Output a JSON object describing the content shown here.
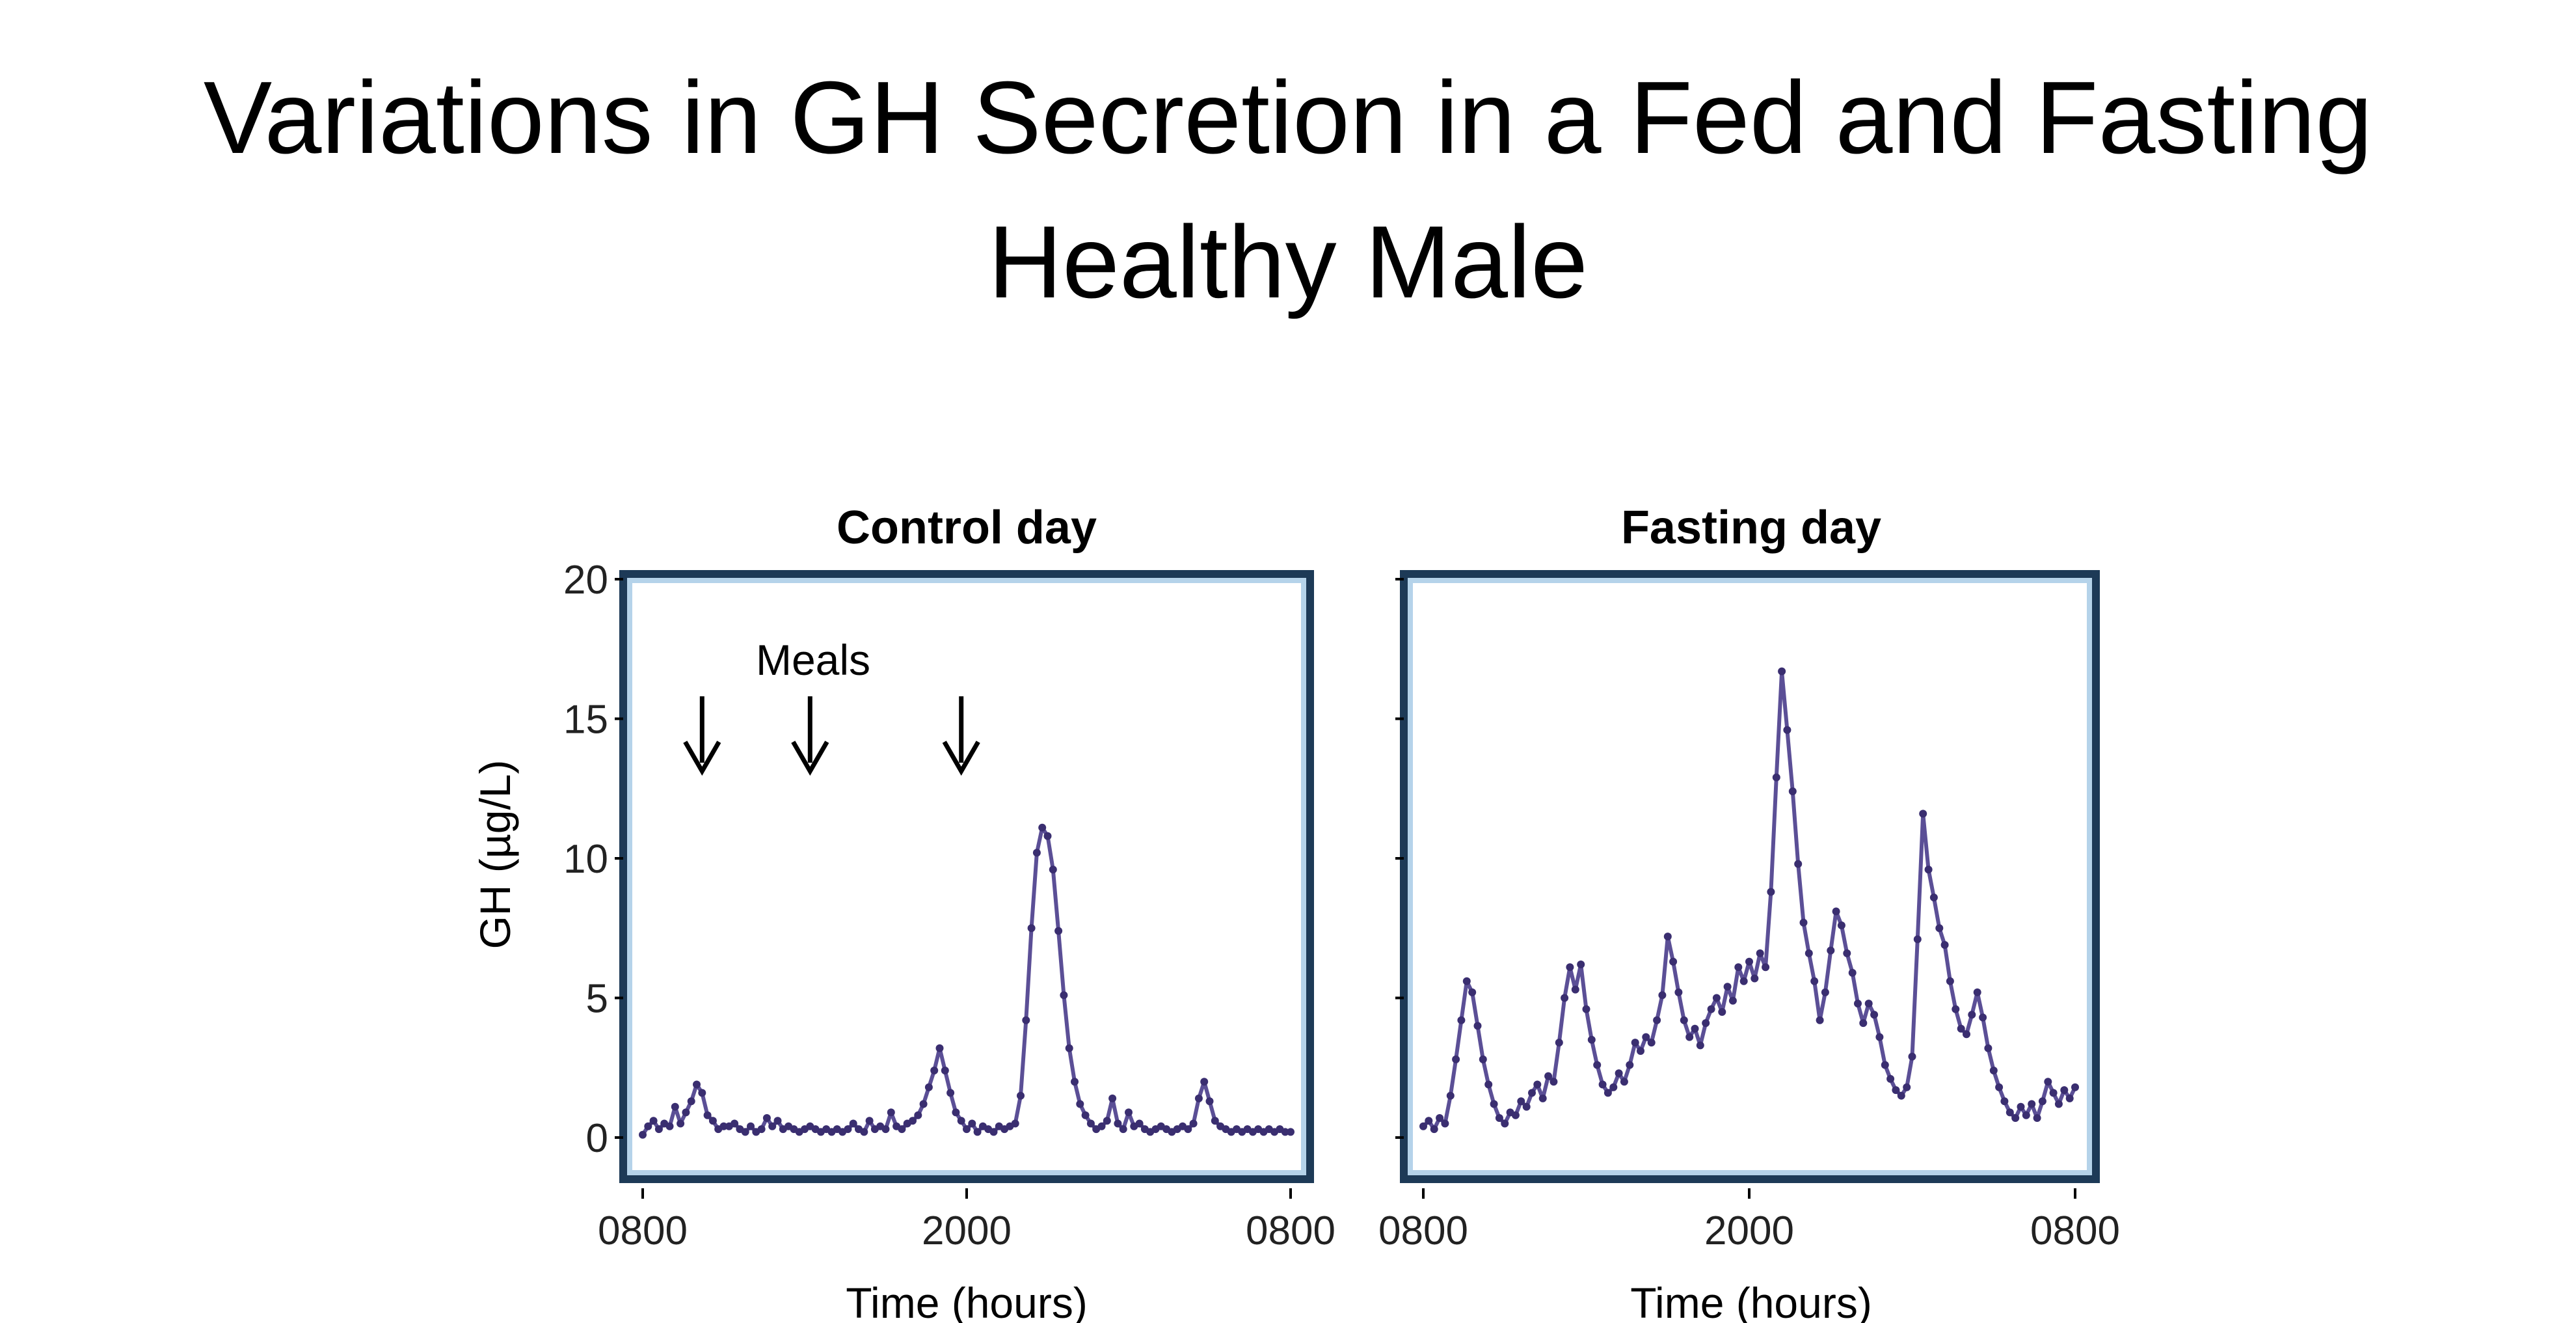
{
  "slide": {
    "title_line1": "Variations in GH Secretion in a Fed and Fasting",
    "title_line2": "Healthy Male"
  },
  "colors": {
    "series_line": "#5b4f96",
    "series_marker": "#3a2e70",
    "frame_dark": "#1d3a57",
    "frame_light": "#b5d3ea",
    "axis": "#000000"
  },
  "chart_data": [
    {
      "type": "line",
      "title": "Control day",
      "xlabel": "Time (hours)",
      "ylabel": "GH (µg/L)",
      "ylim": [
        -1.5,
        20
      ],
      "xlim": [
        8,
        32
      ],
      "yticks": [
        0,
        5,
        10,
        15,
        20
      ],
      "ytick_labels": [
        "0",
        "5",
        "10",
        "15",
        "20"
      ],
      "xticks": [
        8,
        20,
        32
      ],
      "xtick_labels": [
        "0800",
        "2000",
        "0800"
      ],
      "grid": false,
      "annotation": {
        "text": "Meals",
        "meal_times": [
          10.2,
          14.2,
          19.8
        ]
      },
      "series": [
        {
          "x": [
            8.0,
            8.2,
            8.4,
            8.6,
            8.8,
            9.0,
            9.2,
            9.4,
            9.6,
            9.8,
            10.0,
            10.2,
            10.4,
            10.6,
            10.8,
            11.0,
            11.2,
            11.4,
            11.6,
            11.8,
            12.0,
            12.2,
            12.4,
            12.6,
            12.8,
            13.0,
            13.2,
            13.4,
            13.6,
            13.8,
            14.0,
            14.2,
            14.4,
            14.6,
            14.8,
            15.0,
            15.2,
            15.4,
            15.6,
            15.8,
            16.0,
            16.2,
            16.4,
            16.6,
            16.8,
            17.0,
            17.2,
            17.4,
            17.6,
            17.8,
            18.0,
            18.2,
            18.4,
            18.6,
            18.8,
            19.0,
            19.2,
            19.4,
            19.6,
            19.8,
            20.0,
            20.2,
            20.4,
            20.6,
            20.8,
            21.0,
            21.2,
            21.4,
            21.6,
            21.8,
            22.0,
            22.2,
            22.4,
            22.6,
            22.8,
            23.0,
            23.2,
            23.4,
            23.6,
            23.8,
            24.0,
            24.2,
            24.4,
            24.6,
            24.8,
            25.0,
            25.2,
            25.4,
            25.6,
            25.8,
            26.0,
            26.2,
            26.4,
            26.6,
            26.8,
            27.0,
            27.2,
            27.4,
            27.6,
            27.8,
            28.0,
            28.2,
            28.4,
            28.6,
            28.8,
            29.0,
            29.2,
            29.4,
            29.6,
            29.8,
            30.0,
            30.2,
            30.4,
            30.6,
            30.8,
            31.0,
            31.2,
            31.4,
            31.6,
            31.8,
            32.0
          ],
          "values": [
            0.1,
            0.4,
            0.6,
            0.3,
            0.5,
            0.4,
            1.1,
            0.5,
            0.9,
            1.3,
            1.9,
            1.6,
            0.8,
            0.6,
            0.3,
            0.4,
            0.4,
            0.5,
            0.3,
            0.2,
            0.4,
            0.2,
            0.3,
            0.7,
            0.4,
            0.6,
            0.3,
            0.4,
            0.3,
            0.2,
            0.3,
            0.4,
            0.3,
            0.2,
            0.3,
            0.2,
            0.3,
            0.2,
            0.3,
            0.5,
            0.3,
            0.2,
            0.6,
            0.3,
            0.4,
            0.3,
            0.9,
            0.4,
            0.3,
            0.5,
            0.6,
            0.8,
            1.2,
            1.8,
            2.4,
            3.2,
            2.4,
            1.6,
            0.9,
            0.6,
            0.3,
            0.5,
            0.2,
            0.4,
            0.3,
            0.2,
            0.4,
            0.3,
            0.4,
            0.5,
            1.5,
            4.2,
            7.5,
            10.2,
            11.1,
            10.8,
            9.6,
            7.4,
            5.1,
            3.2,
            2.0,
            1.2,
            0.8,
            0.5,
            0.3,
            0.4,
            0.6,
            1.4,
            0.5,
            0.3,
            0.9,
            0.4,
            0.5,
            0.3,
            0.2,
            0.3,
            0.4,
            0.3,
            0.2,
            0.3,
            0.4,
            0.3,
            0.5,
            1.4,
            2.0,
            1.3,
            0.6,
            0.4,
            0.3,
            0.2,
            0.3,
            0.2,
            0.3,
            0.2,
            0.3,
            0.2,
            0.3,
            0.2,
            0.3,
            0.2,
            0.2
          ]
        }
      ]
    },
    {
      "type": "line",
      "title": "Fasting day",
      "xlabel": "Time (hours)",
      "ylabel": "",
      "ylim": [
        -1.5,
        20
      ],
      "xlim": [
        8,
        32
      ],
      "yticks": [
        0,
        5,
        10,
        15,
        20
      ],
      "xticks": [
        8,
        20,
        32
      ],
      "xtick_labels": [
        "0800",
        "2000",
        "0800"
      ],
      "grid": false,
      "series": [
        {
          "x": [
            8.0,
            8.2,
            8.4,
            8.6,
            8.8,
            9.0,
            9.2,
            9.4,
            9.6,
            9.8,
            10.0,
            10.2,
            10.4,
            10.6,
            10.8,
            11.0,
            11.2,
            11.4,
            11.6,
            11.8,
            12.0,
            12.2,
            12.4,
            12.6,
            12.8,
            13.0,
            13.2,
            13.4,
            13.6,
            13.8,
            14.0,
            14.2,
            14.4,
            14.6,
            14.8,
            15.0,
            15.2,
            15.4,
            15.6,
            15.8,
            16.0,
            16.2,
            16.4,
            16.6,
            16.8,
            17.0,
            17.2,
            17.4,
            17.6,
            17.8,
            18.0,
            18.2,
            18.4,
            18.6,
            18.8,
            19.0,
            19.2,
            19.4,
            19.6,
            19.8,
            20.0,
            20.2,
            20.4,
            20.6,
            20.8,
            21.0,
            21.2,
            21.4,
            21.6,
            21.8,
            22.0,
            22.2,
            22.4,
            22.6,
            22.8,
            23.0,
            23.2,
            23.4,
            23.6,
            23.8,
            24.0,
            24.2,
            24.4,
            24.6,
            24.8,
            25.0,
            25.2,
            25.4,
            25.6,
            25.8,
            26.0,
            26.2,
            26.4,
            26.6,
            26.8,
            27.0,
            27.2,
            27.4,
            27.6,
            27.8,
            28.0,
            28.2,
            28.4,
            28.6,
            28.8,
            29.0,
            29.2,
            29.4,
            29.6,
            29.8,
            30.0,
            30.2,
            30.4,
            30.6,
            30.8,
            31.0,
            31.2,
            31.4,
            31.6,
            31.8,
            32.0
          ],
          "values": [
            0.4,
            0.6,
            0.3,
            0.7,
            0.5,
            1.5,
            2.8,
            4.2,
            5.6,
            5.2,
            4.0,
            2.8,
            1.9,
            1.2,
            0.7,
            0.5,
            0.9,
            0.8,
            1.3,
            1.1,
            1.6,
            1.9,
            1.4,
            2.2,
            2.0,
            3.4,
            5.0,
            6.1,
            5.3,
            6.2,
            4.6,
            3.5,
            2.6,
            1.9,
            1.6,
            1.8,
            2.3,
            2.0,
            2.6,
            3.4,
            3.1,
            3.6,
            3.4,
            4.2,
            5.1,
            7.2,
            6.3,
            5.2,
            4.2,
            3.6,
            3.9,
            3.3,
            4.1,
            4.6,
            5.0,
            4.5,
            5.4,
            4.9,
            6.1,
            5.6,
            6.3,
            5.7,
            6.6,
            6.1,
            8.8,
            12.9,
            16.7,
            14.6,
            12.4,
            9.8,
            7.7,
            6.6,
            5.6,
            4.2,
            5.2,
            6.7,
            8.1,
            7.6,
            6.6,
            5.9,
            4.8,
            4.1,
            4.8,
            4.4,
            3.6,
            2.6,
            2.1,
            1.7,
            1.5,
            1.8,
            2.9,
            7.1,
            11.6,
            9.6,
            8.6,
            7.5,
            6.9,
            5.6,
            4.6,
            3.9,
            3.7,
            4.4,
            5.2,
            4.3,
            3.2,
            2.4,
            1.8,
            1.3,
            0.9,
            0.7,
            1.1,
            0.8,
            1.2,
            0.7,
            1.3,
            2.0,
            1.6,
            1.2,
            1.7,
            1.4,
            1.8
          ]
        }
      ]
    }
  ]
}
